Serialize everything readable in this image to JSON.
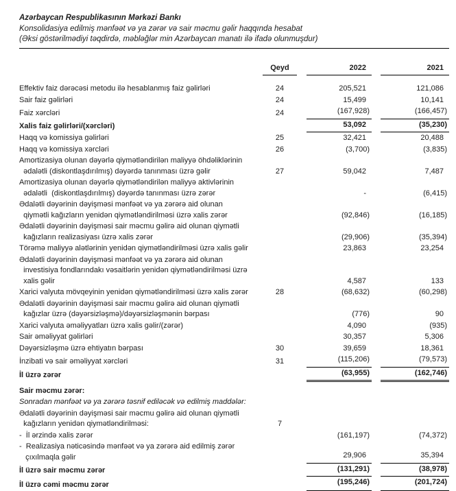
{
  "header": {
    "bank_name": "Azərbaycan Respublikasının Mərkəzi Bankı",
    "statement_title": "Konsolidasiya edilmiş mənfəət və ya zərər və sair məcmu gəlir haqqında hesabat",
    "measurement_note": "(Əksi göstərilmədiyi təqdirdə, məbləğlər min Azərbaycan manatı ilə ifadə olunmuşdur)"
  },
  "columns": {
    "note": "Qeyd",
    "year_2022": "2022",
    "year_2021": "2021"
  },
  "rows": [
    {
      "label": "Effektiv faiz dərəcəsi metodu ilə hesablanmış faiz gəlirləri",
      "note": "24",
      "v2022": "205,521",
      "v2021": "121,086",
      "bold": false,
      "italic": false,
      "underline": "none"
    },
    {
      "label": "Sair faiz gəlirləri",
      "note": "24",
      "v2022": "15,499",
      "v2021": "10,141",
      "bold": false,
      "italic": false,
      "underline": "none"
    },
    {
      "label": "Faiz xərcləri",
      "note": "24",
      "v2022": "(167,928)",
      "v2021": "(166,457)",
      "bold": false,
      "italic": false,
      "underline": "single"
    },
    {
      "label": "Xalis faiz gəlirləri/(xərcləri)",
      "note": "",
      "v2022": "53,092",
      "v2021": "(35,230)",
      "bold": true,
      "italic": false,
      "underline": "single"
    },
    {
      "label": "Haqq və komissiya gəlirləri",
      "note": "25",
      "v2022": "32,421",
      "v2021": "20,488",
      "bold": false,
      "italic": false,
      "underline": "none"
    },
    {
      "label": "Haqq və komissiya xərcləri",
      "note": "26",
      "v2022": "(3,700)",
      "v2021": "(3,835)",
      "bold": false,
      "italic": false,
      "underline": "none"
    },
    {
      "label": "Amortizasiya olunan dəyərlə qiymətləndirilən maliyyə öhdəliklərinin\n  ədalətli (diskontlaşdırılmış) dəyərdə tanınması üzrə gəlir",
      "note": "27",
      "v2022": "59,042",
      "v2021": "7,487",
      "bold": false,
      "italic": false,
      "underline": "none"
    },
    {
      "label": "Amortizasiya olunan dəyərlə qiymətləndirilən maliyyə aktivlərinin\n  ədalətli  (diskontlaşdırılmış) dəyərdə tanınması üzrə zərər",
      "note": "",
      "v2022": "-",
      "v2021": "(6,415)",
      "bold": false,
      "italic": false,
      "underline": "none"
    },
    {
      "label": "Ədalətli dəyərinin dəyişməsi mənfəət və ya zərərə aid olunan\n  qiymətli kağızların yenidən qiymətləndirilməsi üzrə xalis zərər",
      "note": "",
      "v2022": "(92,846)",
      "v2021": "(16,185)",
      "bold": false,
      "italic": false,
      "underline": "none"
    },
    {
      "label": "Ədalətli dəyərinin dəyişməsi sair məcmu gəlirə aid olunan qiymətli\n  kağızların realizasiyası üzrə xalis zərər",
      "note": "",
      "v2022": "(29,906)",
      "v2021": "(35,394)",
      "bold": false,
      "italic": false,
      "underline": "none"
    },
    {
      "label": "Törəmə maliyyə alətlərinin yenidən qiymətləndirilməsi üzrə xalis gəlir",
      "note": "",
      "v2022": "23,863",
      "v2021": "23,254",
      "bold": false,
      "italic": false,
      "underline": "none"
    },
    {
      "label": "Ədalətli dəyərinin dəyişməsi mənfəət və ya zərərə aid olunan\n  investisiya fondlarındakı vəsaitlərin yenidən qiymətləndirilməsi üzrə\n  xalis gəlir",
      "note": "",
      "v2022": "4,587",
      "v2021": "133",
      "bold": false,
      "italic": false,
      "underline": "none"
    },
    {
      "label": "Xarici valyuta mövqeyinin yenidən qiymətləndirilməsi üzrə xalis zərər",
      "note": "28",
      "v2022": "(68,632)",
      "v2021": "(60,298)",
      "bold": false,
      "italic": false,
      "underline": "none"
    },
    {
      "label": "Ədalətli dəyərinin dəyişməsi sair məcmu gəlirə aid olunan qiymətli\n  kağızlar üzrə (dəyərsizləşmə)/dəyərsizləşmənin bərpası",
      "note": "",
      "v2022": "(776)",
      "v2021": "90",
      "bold": false,
      "italic": false,
      "underline": "none"
    },
    {
      "label": "Xarici valyuta əməliyyatları üzrə xalis gəlir/(zərər)",
      "note": "",
      "v2022": "4,090",
      "v2021": "(935)",
      "bold": false,
      "italic": false,
      "underline": "none"
    },
    {
      "label": "Sair əməliyyat gəlirləri",
      "note": "",
      "v2022": "30,357",
      "v2021": "5,306",
      "bold": false,
      "italic": false,
      "underline": "none"
    },
    {
      "label": "Dəyərsizləşmə üzrə ehtiyatın bərpası",
      "note": "30",
      "v2022": "39,659",
      "v2021": "18,361",
      "bold": false,
      "italic": false,
      "underline": "none"
    },
    {
      "label": "İnzibati və sair əməliyyat xərcləri",
      "note": "31",
      "v2022": "(115,206)",
      "v2021": "(79,573)",
      "bold": false,
      "italic": false,
      "underline": "single"
    },
    {
      "label": "İl üzrə zərər",
      "note": "",
      "v2022": "(63,955)",
      "v2021": "(162,746)",
      "bold": true,
      "italic": false,
      "underline": "double"
    },
    {
      "label": "Sair məcmu zərər:",
      "note": "",
      "v2022": "",
      "v2021": "",
      "bold": true,
      "italic": false,
      "underline": "none",
      "spacer": true
    },
    {
      "label": "Sonradan mənfəət və ya zərərə təsnif ediləcək və edilmiş maddələr:",
      "note": "",
      "v2022": "",
      "v2021": "",
      "bold": false,
      "italic": true,
      "underline": "none"
    },
    {
      "label": "Ədalətli dəyərinin dəyişməsi sair məcmu gəlirə aid olunan qiymətli\n  kağızların yenidən qiymətləndirilməsi:",
      "note": "7",
      "v2022": "",
      "v2021": "",
      "bold": false,
      "italic": false,
      "underline": "none"
    },
    {
      "label": "-  İl ərzində xalis zərər",
      "note": "",
      "v2022": "(161,197)",
      "v2021": "(74,372)",
      "bold": false,
      "italic": false,
      "underline": "none"
    },
    {
      "label": "-  Realizasiya nəticəsində mənfəət və ya zərərə aid edilmiş zərər\n   çıxılmaqla gəlir",
      "note": "",
      "v2022": "29,906",
      "v2021": "35,394",
      "bold": false,
      "italic": false,
      "underline": "single"
    },
    {
      "label": "İl üzrə sair məcmu zərər",
      "note": "",
      "v2022": "(131,291)",
      "v2021": "(38,978)",
      "bold": true,
      "italic": false,
      "underline": "single"
    },
    {
      "label": "İl üzrə cəmi məcmu zərər",
      "note": "",
      "v2022": "(195,246)",
      "v2021": "(201,724)",
      "bold": true,
      "italic": false,
      "underline": "thick"
    }
  ],
  "colors": {
    "text": "#1c1c1c",
    "rule": "#000000",
    "background": "#ffffff"
  }
}
